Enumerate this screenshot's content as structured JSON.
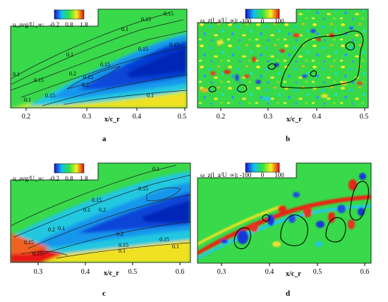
{
  "figure": {
    "panels": [
      {
        "id": "a",
        "caption": "a",
        "colorbar_label": "u_avg/U_∞:",
        "colorbar_ticks": [
          "-0.2",
          "0.8",
          "1.8"
        ],
        "x_label": "x/c_r",
        "x_ticks": [
          "0.2",
          "0.3",
          "0.4",
          "0.5"
        ],
        "contour_labels": [
          "0.1",
          "0.15",
          "0.15",
          "0.15",
          "0.2",
          "0.15",
          "0.15",
          "0.2",
          "0.1",
          "0.1",
          "0.15",
          "0.15",
          "0.1",
          "0.15",
          "0.1"
        ]
      },
      {
        "id": "b",
        "caption": "b",
        "colorbar_label": "ω_z(l_a/U_∞):",
        "colorbar_ticks": [
          "-100",
          "0",
          "100"
        ],
        "x_label": "x/c_r",
        "x_ticks": [
          "0.2",
          "0.3",
          "0.4",
          "0.5"
        ]
      },
      {
        "id": "c",
        "caption": "c",
        "colorbar_label": "u_avg/U_∞:",
        "colorbar_ticks": [
          "-0.2",
          "0.8",
          "1.8"
        ],
        "x_label": "x/c_r",
        "x_ticks": [
          "0.3",
          "0.4",
          "0.5",
          "0.6"
        ],
        "contour_labels": [
          "0.1",
          "0.15",
          "0.15",
          "0.1",
          "0.2",
          "0.2",
          "0.15",
          "0.2",
          "0.1",
          "0.15",
          "0.15",
          "0.15",
          "0.1",
          "0.1"
        ]
      },
      {
        "id": "d",
        "caption": "d",
        "colorbar_label": "ω_z(l_a/U_∞):",
        "colorbar_ticks": [
          "-100",
          "0",
          "100"
        ],
        "x_label": "x/c_r",
        "x_ticks": [
          "0.3",
          "0.4",
          "0.5",
          "0.6"
        ]
      }
    ],
    "colors": {
      "background_green": "#33dd44",
      "low_blue": "#0a3cd8",
      "mid_cyan": "#20c8e8",
      "high_yellow": "#f4e020",
      "peak_red": "#e81010"
    }
  }
}
